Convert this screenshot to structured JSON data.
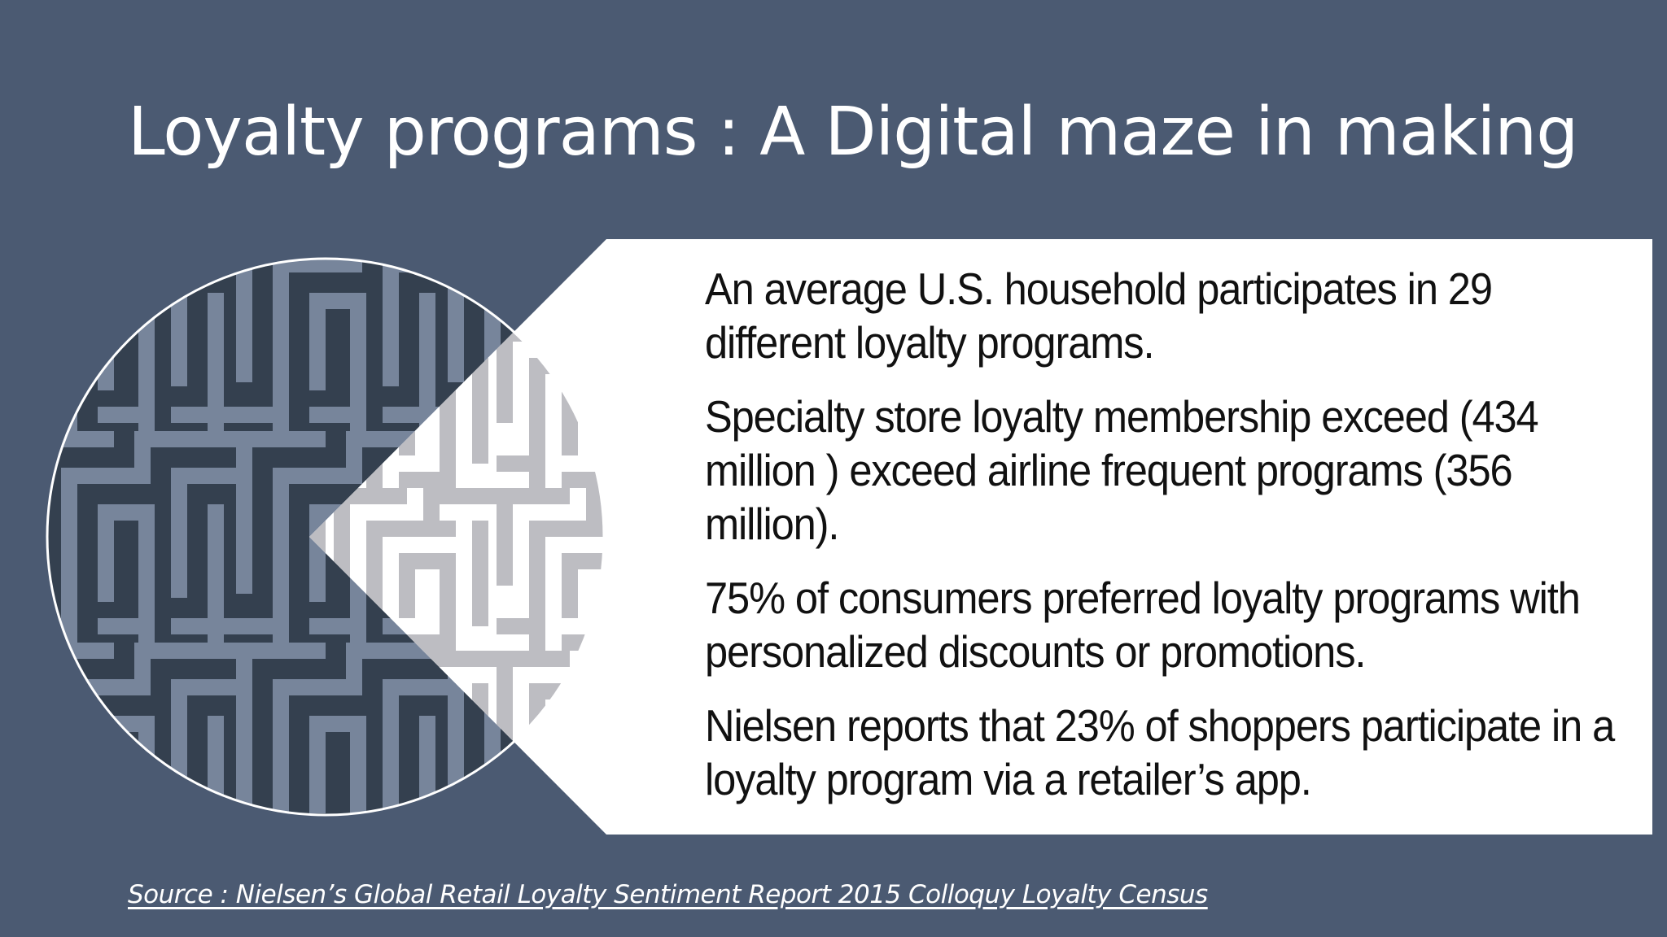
{
  "slide": {
    "title": "Loyalty programs : A Digital maze in making",
    "bullets": [
      "An average U.S. household participates in 29 different loyalty programs.",
      "Specialty store loyalty membership exceed (434 million ) exceed airline frequent programs (356 million).",
      "75% of consumers preferred loyalty programs with personalized discounts or promotions.",
      "Nielsen reports that 23% of shoppers participate in a loyalty program via a retailer’s app."
    ],
    "source": "Source : Nielsen’s Global Retail Loyalty Sentiment Report  2015 Colloquy Loyalty Census"
  },
  "colors": {
    "background": "#4b5a72",
    "panel": "#ffffff",
    "maze_dark": "#34404f",
    "maze_light": "#77859b",
    "zoom_light": "#ffffff",
    "zoom_dark": "#bdbdc2"
  },
  "graphics": {
    "maze_circle": "maze-pattern-circle",
    "zoom_callout": "magnified-maze-callout"
  }
}
